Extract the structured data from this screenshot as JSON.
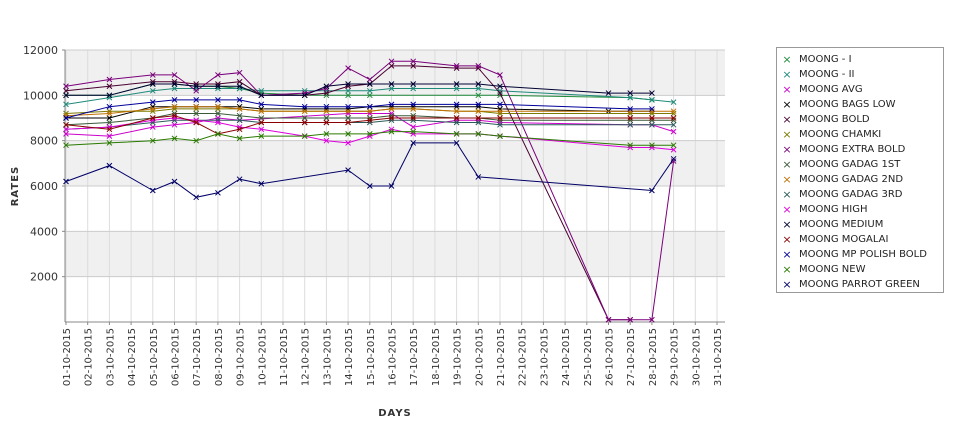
{
  "chart_data": {
    "type": "line",
    "xlabel": "DAYS",
    "ylabel": "RATES",
    "ylim": [
      0,
      12000
    ],
    "yticks": [
      2000,
      4000,
      6000,
      8000,
      10000,
      12000
    ],
    "categories": [
      "01-10-2015",
      "02-10-2015",
      "03-10-2015",
      "04-10-2015",
      "05-10-2015",
      "06-10-2015",
      "07-10-2015",
      "08-10-2015",
      "09-10-2015",
      "10-10-2015",
      "11-10-2015",
      "12-10-2015",
      "13-10-2015",
      "14-10-2015",
      "15-10-2015",
      "16-10-2015",
      "17-10-2015",
      "18-10-2015",
      "19-10-2015",
      "20-10-2015",
      "21-10-2015",
      "22-10-2015",
      "23-10-2015",
      "24-10-2015",
      "25-10-2015",
      "26-10-2015",
      "27-10-2015",
      "28-10-2015",
      "29-10-2015",
      "30-10-2015",
      "31-10-2015"
    ],
    "grid": true,
    "legend_position": "right",
    "series": [
      {
        "name": "MOONG - I",
        "color": "#1f8a3a",
        "values": [
          10000,
          null,
          10000,
          null,
          10500,
          10500,
          10400,
          10400,
          10300,
          10100,
          null,
          10000,
          10000,
          10000,
          10000,
          null,
          null,
          null,
          null,
          10000,
          10000,
          null,
          null,
          null,
          null,
          null,
          9900,
          9800,
          null,
          null,
          null
        ]
      },
      {
        "name": "MOONG - II",
        "color": "#1f8a7a",
        "values": [
          9600,
          null,
          9900,
          null,
          10200,
          10300,
          10300,
          10300,
          10300,
          10200,
          null,
          10200,
          10200,
          10200,
          10200,
          10300,
          10300,
          null,
          10300,
          10300,
          10200,
          null,
          null,
          null,
          null,
          null,
          9900,
          9800,
          9700,
          null,
          null
        ]
      },
      {
        "name": "MOONG AVG",
        "color": "#cc00cc",
        "values": [
          8300,
          null,
          8200,
          null,
          8600,
          8700,
          8800,
          9000,
          8900,
          null,
          null,
          null,
          null,
          9200,
          9200,
          9200,
          8600,
          null,
          8900,
          8900,
          8800,
          null,
          null,
          null,
          null,
          null,
          8700,
          8700,
          8400,
          null,
          null
        ]
      },
      {
        "name": "MOONG BAGS LOW",
        "color": "#000000",
        "values": [
          9000,
          null,
          9000,
          null,
          9500,
          9500,
          9500,
          9500,
          9500,
          9400,
          null,
          9400,
          9400,
          9400,
          9500,
          9500,
          9500,
          null,
          9500,
          9500,
          9400,
          null,
          null,
          null,
          null,
          9300,
          9300,
          9300,
          null,
          null,
          null
        ]
      },
      {
        "name": "MOONG BOLD",
        "color": "#4a0030",
        "values": [
          10200,
          null,
          10400,
          null,
          10600,
          10600,
          10500,
          10500,
          10600,
          10000,
          null,
          10000,
          10100,
          10400,
          10500,
          11300,
          11300,
          null,
          11200,
          11200,
          10100,
          null,
          null,
          null,
          null,
          100,
          100,
          null,
          null,
          null,
          null
        ]
      },
      {
        "name": "MOONG CHAMKI",
        "color": "#7a7a00",
        "values": [
          9200,
          null,
          9300,
          null,
          9300,
          9400,
          9400,
          9400,
          9400,
          9300,
          null,
          9300,
          9300,
          9300,
          9300,
          9400,
          9400,
          null,
          9300,
          9300,
          9200,
          null,
          null,
          null,
          null,
          null,
          9200,
          9200,
          9200,
          null,
          null
        ]
      },
      {
        "name": "MOONG EXTRA BOLD",
        "color": "#7a007a",
        "values": [
          10400,
          null,
          10700,
          null,
          10900,
          10900,
          10200,
          10900,
          11000,
          10000,
          null,
          10100,
          10300,
          11200,
          10700,
          11500,
          11500,
          null,
          11300,
          11300,
          10900,
          null,
          null,
          null,
          null,
          100,
          100,
          100,
          7100,
          null,
          null
        ]
      },
      {
        "name": "MOONG GADAG 1ST",
        "color": "#3a5a3a",
        "values": [
          8700,
          null,
          8800,
          null,
          9000,
          9200,
          9200,
          9200,
          9100,
          9000,
          null,
          9000,
          9000,
          9000,
          9000,
          9100,
          9100,
          null,
          9000,
          9000,
          8900,
          null,
          null,
          null,
          null,
          null,
          8900,
          8900,
          8900,
          null,
          null
        ]
      },
      {
        "name": "MOONG GADAG 2ND",
        "color": "#c07000",
        "values": [
          9100,
          null,
          9200,
          null,
          9400,
          9500,
          9500,
          9500,
          9400,
          9300,
          null,
          9300,
          9300,
          9300,
          9300,
          9400,
          9400,
          null,
          9300,
          9300,
          9300,
          null,
          null,
          null,
          null,
          null,
          9300,
          9300,
          9300,
          null,
          null
        ]
      },
      {
        "name": "MOONG GADAG 3RD",
        "color": "#2a5a5a",
        "values": [
          8500,
          null,
          8600,
          null,
          8800,
          8900,
          8900,
          8900,
          8900,
          8800,
          null,
          8800,
          8800,
          8800,
          8800,
          8900,
          8900,
          null,
          8800,
          8800,
          8700,
          null,
          null,
          null,
          null,
          null,
          8700,
          8700,
          8700,
          null,
          null
        ]
      },
      {
        "name": "MOONG HIGH",
        "color": "#dd00dd",
        "values": [
          8500,
          null,
          8600,
          null,
          8900,
          9000,
          8900,
          8800,
          8600,
          8500,
          null,
          8200,
          8000,
          7900,
          8200,
          8500,
          8300,
          null,
          8300,
          8300,
          8200,
          null,
          null,
          null,
          null,
          null,
          7700,
          7700,
          7600,
          null,
          null
        ]
      },
      {
        "name": "MOONG MEDIUM",
        "color": "#000033",
        "values": [
          10000,
          null,
          10000,
          null,
          10500,
          10500,
          10400,
          10400,
          10400,
          10000,
          null,
          10000,
          10400,
          10500,
          10500,
          10500,
          10500,
          null,
          10500,
          10500,
          10400,
          null,
          null,
          null,
          null,
          10100,
          10100,
          10100,
          null,
          null,
          null
        ]
      },
      {
        "name": "MOONG MOGALAI",
        "color": "#8a0000",
        "values": [
          8700,
          null,
          8500,
          null,
          9000,
          9100,
          8800,
          8300,
          8500,
          8800,
          null,
          8800,
          8800,
          8800,
          8900,
          9000,
          9000,
          null,
          9000,
          9000,
          9000,
          null,
          null,
          null,
          null,
          null,
          9000,
          9000,
          9000,
          null,
          null
        ]
      },
      {
        "name": "MOONG MP POLISH BOLD",
        "color": "#000099",
        "values": [
          9000,
          null,
          9500,
          null,
          9700,
          9800,
          9800,
          9800,
          9800,
          9600,
          null,
          9500,
          9500,
          9500,
          9500,
          9600,
          9600,
          null,
          9600,
          9600,
          9600,
          null,
          null,
          null,
          null,
          null,
          9400,
          9400,
          null,
          null,
          null
        ]
      },
      {
        "name": "MOONG NEW",
        "color": "#2a7a00",
        "values": [
          7800,
          null,
          7900,
          null,
          8000,
          8100,
          8000,
          8300,
          8100,
          8200,
          null,
          8200,
          8300,
          8300,
          8300,
          8400,
          8400,
          null,
          8300,
          8300,
          8200,
          null,
          null,
          null,
          null,
          null,
          7800,
          7800,
          7800,
          null,
          null
        ]
      },
      {
        "name": "MOONG PARROT GREEN",
        "color": "#000066",
        "values": [
          6200,
          null,
          6900,
          null,
          5800,
          6200,
          5500,
          5700,
          6300,
          6100,
          null,
          null,
          null,
          6700,
          6000,
          6000,
          7900,
          null,
          7900,
          6400,
          null,
          null,
          null,
          null,
          null,
          null,
          null,
          5800,
          7200,
          null,
          null
        ]
      }
    ]
  }
}
